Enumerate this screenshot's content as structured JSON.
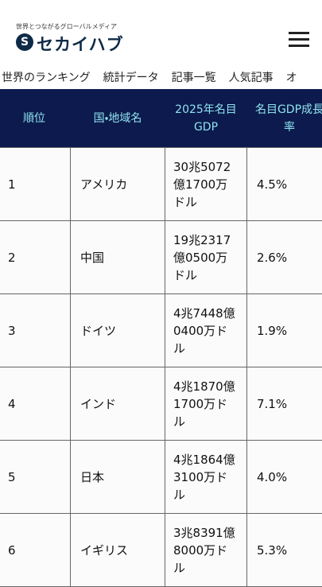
{
  "header": {
    "tagline": "世界とつながるグローバルメディア",
    "logo_mark": "S",
    "logo": "セカイハブ"
  },
  "nav": [
    "世界のランキング",
    "統計データ",
    "記事一覧",
    "人気記事",
    "オ"
  ],
  "table": {
    "columns": [
      "順位",
      "国・地域名",
      "2025年名目GDP",
      "名目GDP成長率"
    ],
    "rows": [
      [
        "1",
        "アメリカ",
        "30兆5072億1700万ドル",
        "4.5%"
      ],
      [
        "2",
        "中国",
        "19兆2317億0500万ドル",
        "2.6%"
      ],
      [
        "3",
        "ドイツ",
        "4兆7448億0400万ドル",
        "1.9%"
      ],
      [
        "4",
        "インド",
        "4兆1870億1700万ドル",
        "7.1%"
      ],
      [
        "5",
        "日本",
        "4兆1864億3100万ドル",
        "4.0%"
      ],
      [
        "6",
        "イギリス",
        "3兆8391億8000万ドル",
        "5.3%"
      ]
    ]
  }
}
